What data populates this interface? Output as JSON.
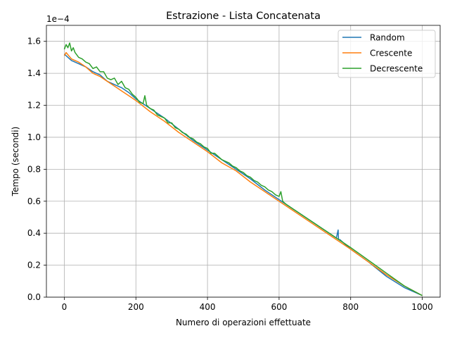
{
  "chart_data": {
    "type": "line",
    "title": "Estrazione - Lista Concatenata",
    "xlabel": "Numero di operazioni effettuate",
    "ylabel": "Tempo (secondi)",
    "y_scale_label": "1e−4",
    "xlim": [
      -50,
      1050
    ],
    "ylim": [
      0,
      1.7
    ],
    "y_unit_multiplier": 0.0001,
    "x_ticks": [
      0,
      200,
      400,
      600,
      800,
      1000
    ],
    "x_tick_labels": [
      "0",
      "200",
      "400",
      "600",
      "800",
      "1000"
    ],
    "y_ticks": [
      0.0,
      0.2,
      0.4,
      0.6,
      0.8,
      1.0,
      1.2,
      1.4,
      1.6
    ],
    "y_tick_labels": [
      "0.0",
      "0.2",
      "0.4",
      "0.6",
      "0.8",
      "1.0",
      "1.2",
      "1.4",
      "1.6"
    ],
    "grid": true,
    "legend_position": "top-right",
    "series": [
      {
        "name": "Random",
        "color": "#1f77b4",
        "x": [
          0,
          20,
          40,
          60,
          80,
          100,
          120,
          140,
          160,
          180,
          200,
          240,
          280,
          320,
          360,
          400,
          440,
          480,
          520,
          560,
          600,
          640,
          680,
          720,
          760,
          765,
          766,
          770,
          800,
          850,
          900,
          950,
          1000
        ],
        "values": [
          1.52,
          1.48,
          1.46,
          1.44,
          1.41,
          1.39,
          1.35,
          1.33,
          1.31,
          1.28,
          1.24,
          1.18,
          1.12,
          1.05,
          0.98,
          0.92,
          0.86,
          0.8,
          0.74,
          0.67,
          0.61,
          0.55,
          0.49,
          0.43,
          0.37,
          0.42,
          0.36,
          0.36,
          0.3,
          0.22,
          0.13,
          0.06,
          0.01
        ]
      },
      {
        "name": "Crescente",
        "color": "#ff7f0e",
        "x": [
          0,
          5,
          20,
          40,
          60,
          80,
          100,
          120,
          140,
          160,
          180,
          200,
          240,
          280,
          320,
          360,
          400,
          440,
          480,
          520,
          560,
          600,
          640,
          680,
          720,
          760,
          800,
          850,
          900,
          950,
          1000
        ],
        "values": [
          1.51,
          1.53,
          1.49,
          1.47,
          1.44,
          1.4,
          1.38,
          1.35,
          1.32,
          1.29,
          1.26,
          1.23,
          1.16,
          1.1,
          1.03,
          0.97,
          0.91,
          0.84,
          0.79,
          0.72,
          0.66,
          0.6,
          0.54,
          0.48,
          0.42,
          0.36,
          0.3,
          0.22,
          0.14,
          0.07,
          0.01
        ]
      },
      {
        "name": "Decrescente",
        "color": "#2ca02c",
        "x": [
          0,
          5,
          10,
          15,
          20,
          25,
          30,
          40,
          50,
          60,
          70,
          80,
          90,
          100,
          110,
          120,
          130,
          140,
          150,
          160,
          170,
          180,
          190,
          200,
          210,
          220,
          225,
          230,
          240,
          250,
          260,
          270,
          280,
          290,
          300,
          310,
          320,
          330,
          340,
          350,
          360,
          370,
          380,
          390,
          400,
          410,
          420,
          430,
          440,
          450,
          460,
          470,
          480,
          490,
          500,
          510,
          520,
          530,
          540,
          550,
          560,
          570,
          580,
          590,
          600,
          605,
          610,
          620,
          640,
          660,
          680,
          700,
          720,
          740,
          760,
          780,
          800,
          850,
          900,
          950,
          1000
        ],
        "values": [
          1.55,
          1.58,
          1.56,
          1.59,
          1.54,
          1.56,
          1.53,
          1.5,
          1.49,
          1.47,
          1.46,
          1.43,
          1.44,
          1.41,
          1.41,
          1.37,
          1.36,
          1.37,
          1.33,
          1.35,
          1.31,
          1.3,
          1.27,
          1.25,
          1.22,
          1.21,
          1.26,
          1.2,
          1.18,
          1.17,
          1.14,
          1.13,
          1.12,
          1.09,
          1.09,
          1.06,
          1.05,
          1.03,
          1.02,
          1.0,
          0.99,
          0.97,
          0.96,
          0.94,
          0.93,
          0.9,
          0.9,
          0.88,
          0.86,
          0.85,
          0.84,
          0.82,
          0.81,
          0.79,
          0.78,
          0.76,
          0.75,
          0.73,
          0.72,
          0.7,
          0.69,
          0.67,
          0.66,
          0.64,
          0.63,
          0.66,
          0.6,
          0.58,
          0.55,
          0.52,
          0.49,
          0.46,
          0.43,
          0.4,
          0.37,
          0.34,
          0.31,
          0.23,
          0.15,
          0.07,
          0.01
        ]
      }
    ]
  }
}
